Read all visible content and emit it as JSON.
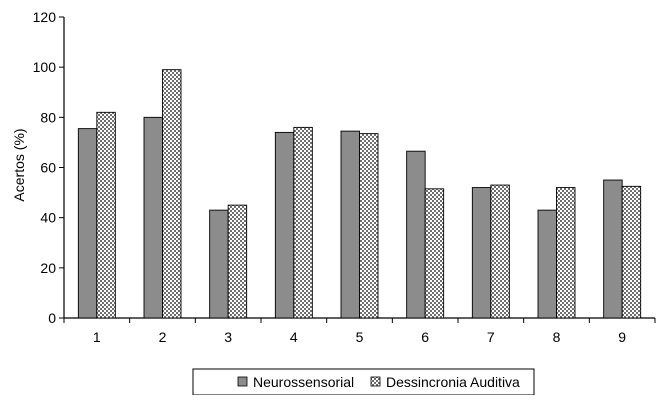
{
  "chart_data": {
    "type": "bar",
    "title": "",
    "xlabel": "",
    "ylabel": "Acertos (%)",
    "ylim": [
      0,
      120
    ],
    "yticks": [
      0,
      20,
      40,
      60,
      80,
      100,
      120
    ],
    "grid": false,
    "legend_position": "bottom",
    "categories": [
      "1",
      "2",
      "3",
      "4",
      "5",
      "6",
      "7",
      "8",
      "9"
    ],
    "series": [
      {
        "name": "Neurossensorial",
        "color": "#8c8c8c",
        "pattern": "solid",
        "values": [
          75.5,
          80,
          43,
          74,
          74.5,
          66.5,
          52,
          43,
          55
        ]
      },
      {
        "name": "Dessincronia Auditiva",
        "color": "#d6d6d6",
        "pattern": "checker",
        "values": [
          82,
          99,
          45,
          76,
          73.5,
          51.5,
          53,
          52,
          52.5
        ]
      }
    ]
  }
}
